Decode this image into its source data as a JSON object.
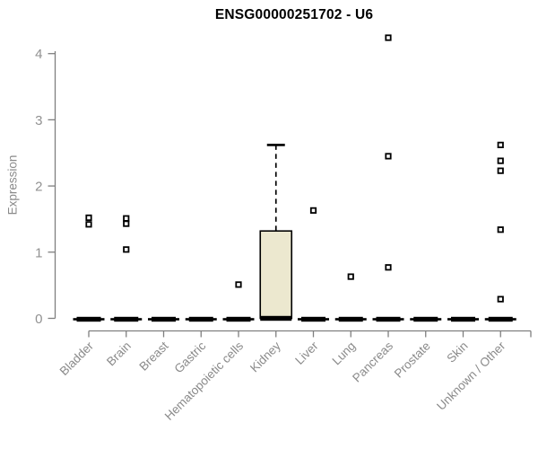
{
  "chart_data": {
    "type": "boxplot",
    "title": "ENSG00000251702 - U6",
    "ylabel": "Expression",
    "xlabel": "",
    "ylim": [
      0,
      4
    ],
    "yticks": [
      0,
      1,
      2,
      3,
      4
    ],
    "grid": false,
    "legend": null,
    "categories": [
      "Bladder",
      "Brain",
      "Breast",
      "Gastric",
      "Hematopoietic cells",
      "Kidney",
      "Liver",
      "Lung",
      "Pancreas",
      "Prostate",
      "Skin",
      "Unknown / Other"
    ],
    "groups": [
      {
        "category": "Bladder",
        "median": 0,
        "q1": 0,
        "q3": 0,
        "whisker_low": 0,
        "whisker_high": 0,
        "outliers": [
          1.42,
          1.52
        ]
      },
      {
        "category": "Brain",
        "median": 0,
        "q1": 0,
        "q3": 0,
        "whisker_low": 0,
        "whisker_high": 0,
        "outliers": [
          1.04,
          1.43,
          1.51
        ]
      },
      {
        "category": "Breast",
        "median": 0,
        "q1": 0,
        "q3": 0,
        "whisker_low": 0,
        "whisker_high": 0,
        "outliers": []
      },
      {
        "category": "Gastric",
        "median": 0,
        "q1": 0,
        "q3": 0,
        "whisker_low": 0,
        "whisker_high": 0,
        "outliers": []
      },
      {
        "category": "Hematopoietic cells",
        "median": 0,
        "q1": 0,
        "q3": 0,
        "whisker_low": 0,
        "whisker_high": 0,
        "outliers": [
          0.51
        ]
      },
      {
        "category": "Kidney",
        "median": 0,
        "q1": 0,
        "q3": 1.32,
        "whisker_low": 0,
        "whisker_high": 2.62,
        "outliers": []
      },
      {
        "category": "Liver",
        "median": 0,
        "q1": 0,
        "q3": 0,
        "whisker_low": 0,
        "whisker_high": 0,
        "outliers": [
          1.63
        ]
      },
      {
        "category": "Lung",
        "median": 0,
        "q1": 0,
        "q3": 0,
        "whisker_low": 0,
        "whisker_high": 0,
        "outliers": [
          0.63
        ]
      },
      {
        "category": "Pancreas",
        "median": 0,
        "q1": 0,
        "q3": 0,
        "whisker_low": 0,
        "whisker_high": 0,
        "outliers": [
          0.77,
          2.45,
          4.24
        ]
      },
      {
        "category": "Prostate",
        "median": 0,
        "q1": 0,
        "q3": 0,
        "whisker_low": 0,
        "whisker_high": 0,
        "outliers": []
      },
      {
        "category": "Skin",
        "median": 0,
        "q1": 0,
        "q3": 0,
        "whisker_low": 0,
        "whisker_high": 0,
        "outliers": []
      },
      {
        "category": "Unknown / Other",
        "median": 0,
        "q1": 0,
        "q3": 0,
        "whisker_low": 0,
        "whisker_high": 0,
        "outliers": [
          0.29,
          1.34,
          2.23,
          2.38,
          2.62
        ]
      }
    ],
    "colors": {
      "box_fill": "#ece8cf",
      "box_stroke": "#000000",
      "median": "#000000",
      "outlier_stroke": "#000000",
      "outlier_fill": "#ffffff",
      "axis": "#7f7f7f",
      "tick_label": "#919191",
      "category_label": "#8a8a8a",
      "title": "#000000",
      "background": "#ffffff"
    }
  }
}
